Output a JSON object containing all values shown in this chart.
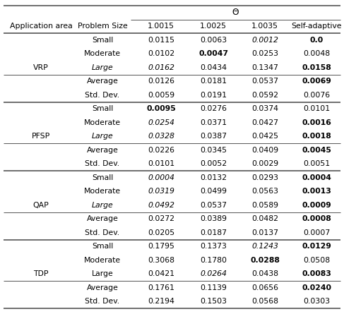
{
  "theta_label": "Θ",
  "col_headers_row1": [
    "",
    "",
    "1.0015",
    "1.0025",
    "1.0035",
    "Self-adaptive"
  ],
  "sections": [
    {
      "area": "VRP",
      "area_row": 2,
      "rows": [
        {
          "size": "Small",
          "v1": "0.0115",
          "v2": "0.0063",
          "v3": "0.0012",
          "v4": "0.0",
          "italic_cols": [
            2
          ],
          "bold_cols": [
            3
          ],
          "size_italic": false
        },
        {
          "size": "Moderate",
          "v1": "0.0102",
          "v2": "0.0047",
          "v3": "0.0253",
          "v4": "0.0048",
          "italic_cols": [],
          "bold_cols": [
            1
          ],
          "size_italic": false
        },
        {
          "size": "Large",
          "v1": "0.0162",
          "v2": "0.0434",
          "v3": "0.1347",
          "v4": "0.0158",
          "italic_cols": [
            0
          ],
          "bold_cols": [
            3
          ],
          "size_italic": true
        },
        {
          "size": "Average",
          "v1": "0.0126",
          "v2": "0.0181",
          "v3": "0.0537",
          "v4": "0.0069",
          "italic_cols": [],
          "bold_cols": [
            3
          ],
          "size_italic": false,
          "sep_above": true
        },
        {
          "size": "Std. Dev.",
          "v1": "0.0059",
          "v2": "0.0191",
          "v3": "0.0592",
          "v4": "0.0076",
          "italic_cols": [],
          "bold_cols": [],
          "size_italic": false
        }
      ]
    },
    {
      "area": "PFSP",
      "area_row": 2,
      "rows": [
        {
          "size": "Small",
          "v1": "0.0095",
          "v2": "0.0276",
          "v3": "0.0374",
          "v4": "0.0101",
          "italic_cols": [],
          "bold_cols": [
            0
          ],
          "size_italic": false
        },
        {
          "size": "Moderate",
          "v1": "0.0254",
          "v2": "0.0371",
          "v3": "0.0427",
          "v4": "0.0016",
          "italic_cols": [
            0
          ],
          "bold_cols": [
            3
          ],
          "size_italic": false
        },
        {
          "size": "Large",
          "v1": "0.0328",
          "v2": "0.0387",
          "v3": "0.0425",
          "v4": "0.0018",
          "italic_cols": [
            0
          ],
          "bold_cols": [
            3
          ],
          "size_italic": true
        },
        {
          "size": "Average",
          "v1": "0.0226",
          "v2": "0.0345",
          "v3": "0.0409",
          "v4": "0.0045",
          "italic_cols": [],
          "bold_cols": [
            3
          ],
          "size_italic": false,
          "sep_above": true
        },
        {
          "size": "Std. Dev.",
          "v1": "0.0101",
          "v2": "0.0052",
          "v3": "0.0029",
          "v4": "0.0051",
          "italic_cols": [],
          "bold_cols": [],
          "size_italic": false
        }
      ]
    },
    {
      "area": "QAP",
      "area_row": 2,
      "rows": [
        {
          "size": "Small",
          "v1": "0.0004",
          "v2": "0.0132",
          "v3": "0.0293",
          "v4": "0.0004",
          "italic_cols": [
            0
          ],
          "bold_cols": [
            3
          ],
          "size_italic": false
        },
        {
          "size": "Moderate",
          "v1": "0.0319",
          "v2": "0.0499",
          "v3": "0.0563",
          "v4": "0.0013",
          "italic_cols": [
            0
          ],
          "bold_cols": [
            3
          ],
          "size_italic": false
        },
        {
          "size": "Large",
          "v1": "0.0492",
          "v2": "0.0537",
          "v3": "0.0589",
          "v4": "0.0009",
          "italic_cols": [
            0
          ],
          "bold_cols": [
            3
          ],
          "size_italic": true
        },
        {
          "size": "Average",
          "v1": "0.0272",
          "v2": "0.0389",
          "v3": "0.0482",
          "v4": "0.0008",
          "italic_cols": [],
          "bold_cols": [
            3
          ],
          "size_italic": false,
          "sep_above": true
        },
        {
          "size": "Std. Dev.",
          "v1": "0.0205",
          "v2": "0.0187",
          "v3": "0.0137",
          "v4": "0.0007",
          "italic_cols": [],
          "bold_cols": [],
          "size_italic": false
        }
      ]
    },
    {
      "area": "TDP",
      "area_row": 2,
      "rows": [
        {
          "size": "Small",
          "v1": "0.1795",
          "v2": "0.1373",
          "v3": "0.1243",
          "v4": "0.0129",
          "italic_cols": [
            2
          ],
          "bold_cols": [
            3
          ],
          "size_italic": false
        },
        {
          "size": "Moderate",
          "v1": "0.3068",
          "v2": "0.1780",
          "v3": "0.0288",
          "v4": "0.0508",
          "italic_cols": [],
          "bold_cols": [
            2
          ],
          "size_italic": false
        },
        {
          "size": "Large",
          "v1": "0.0421",
          "v2": "0.0264",
          "v3": "0.0438",
          "v4": "0.0083",
          "italic_cols": [
            1
          ],
          "bold_cols": [
            3
          ],
          "size_italic": false
        },
        {
          "size": "Average",
          "v1": "0.1761",
          "v2": "0.1139",
          "v3": "0.0656",
          "v4": "0.0240",
          "italic_cols": [],
          "bold_cols": [
            3
          ],
          "size_italic": false,
          "sep_above": true
        },
        {
          "size": "Std. Dev.",
          "v1": "0.2194",
          "v2": "0.1503",
          "v3": "0.0568",
          "v4": "0.0303",
          "italic_cols": [],
          "bold_cols": [],
          "size_italic": false
        }
      ]
    }
  ],
  "bg_color": "#ffffff",
  "text_color": "#000000",
  "line_color": "#555555",
  "font_size": 7.8
}
